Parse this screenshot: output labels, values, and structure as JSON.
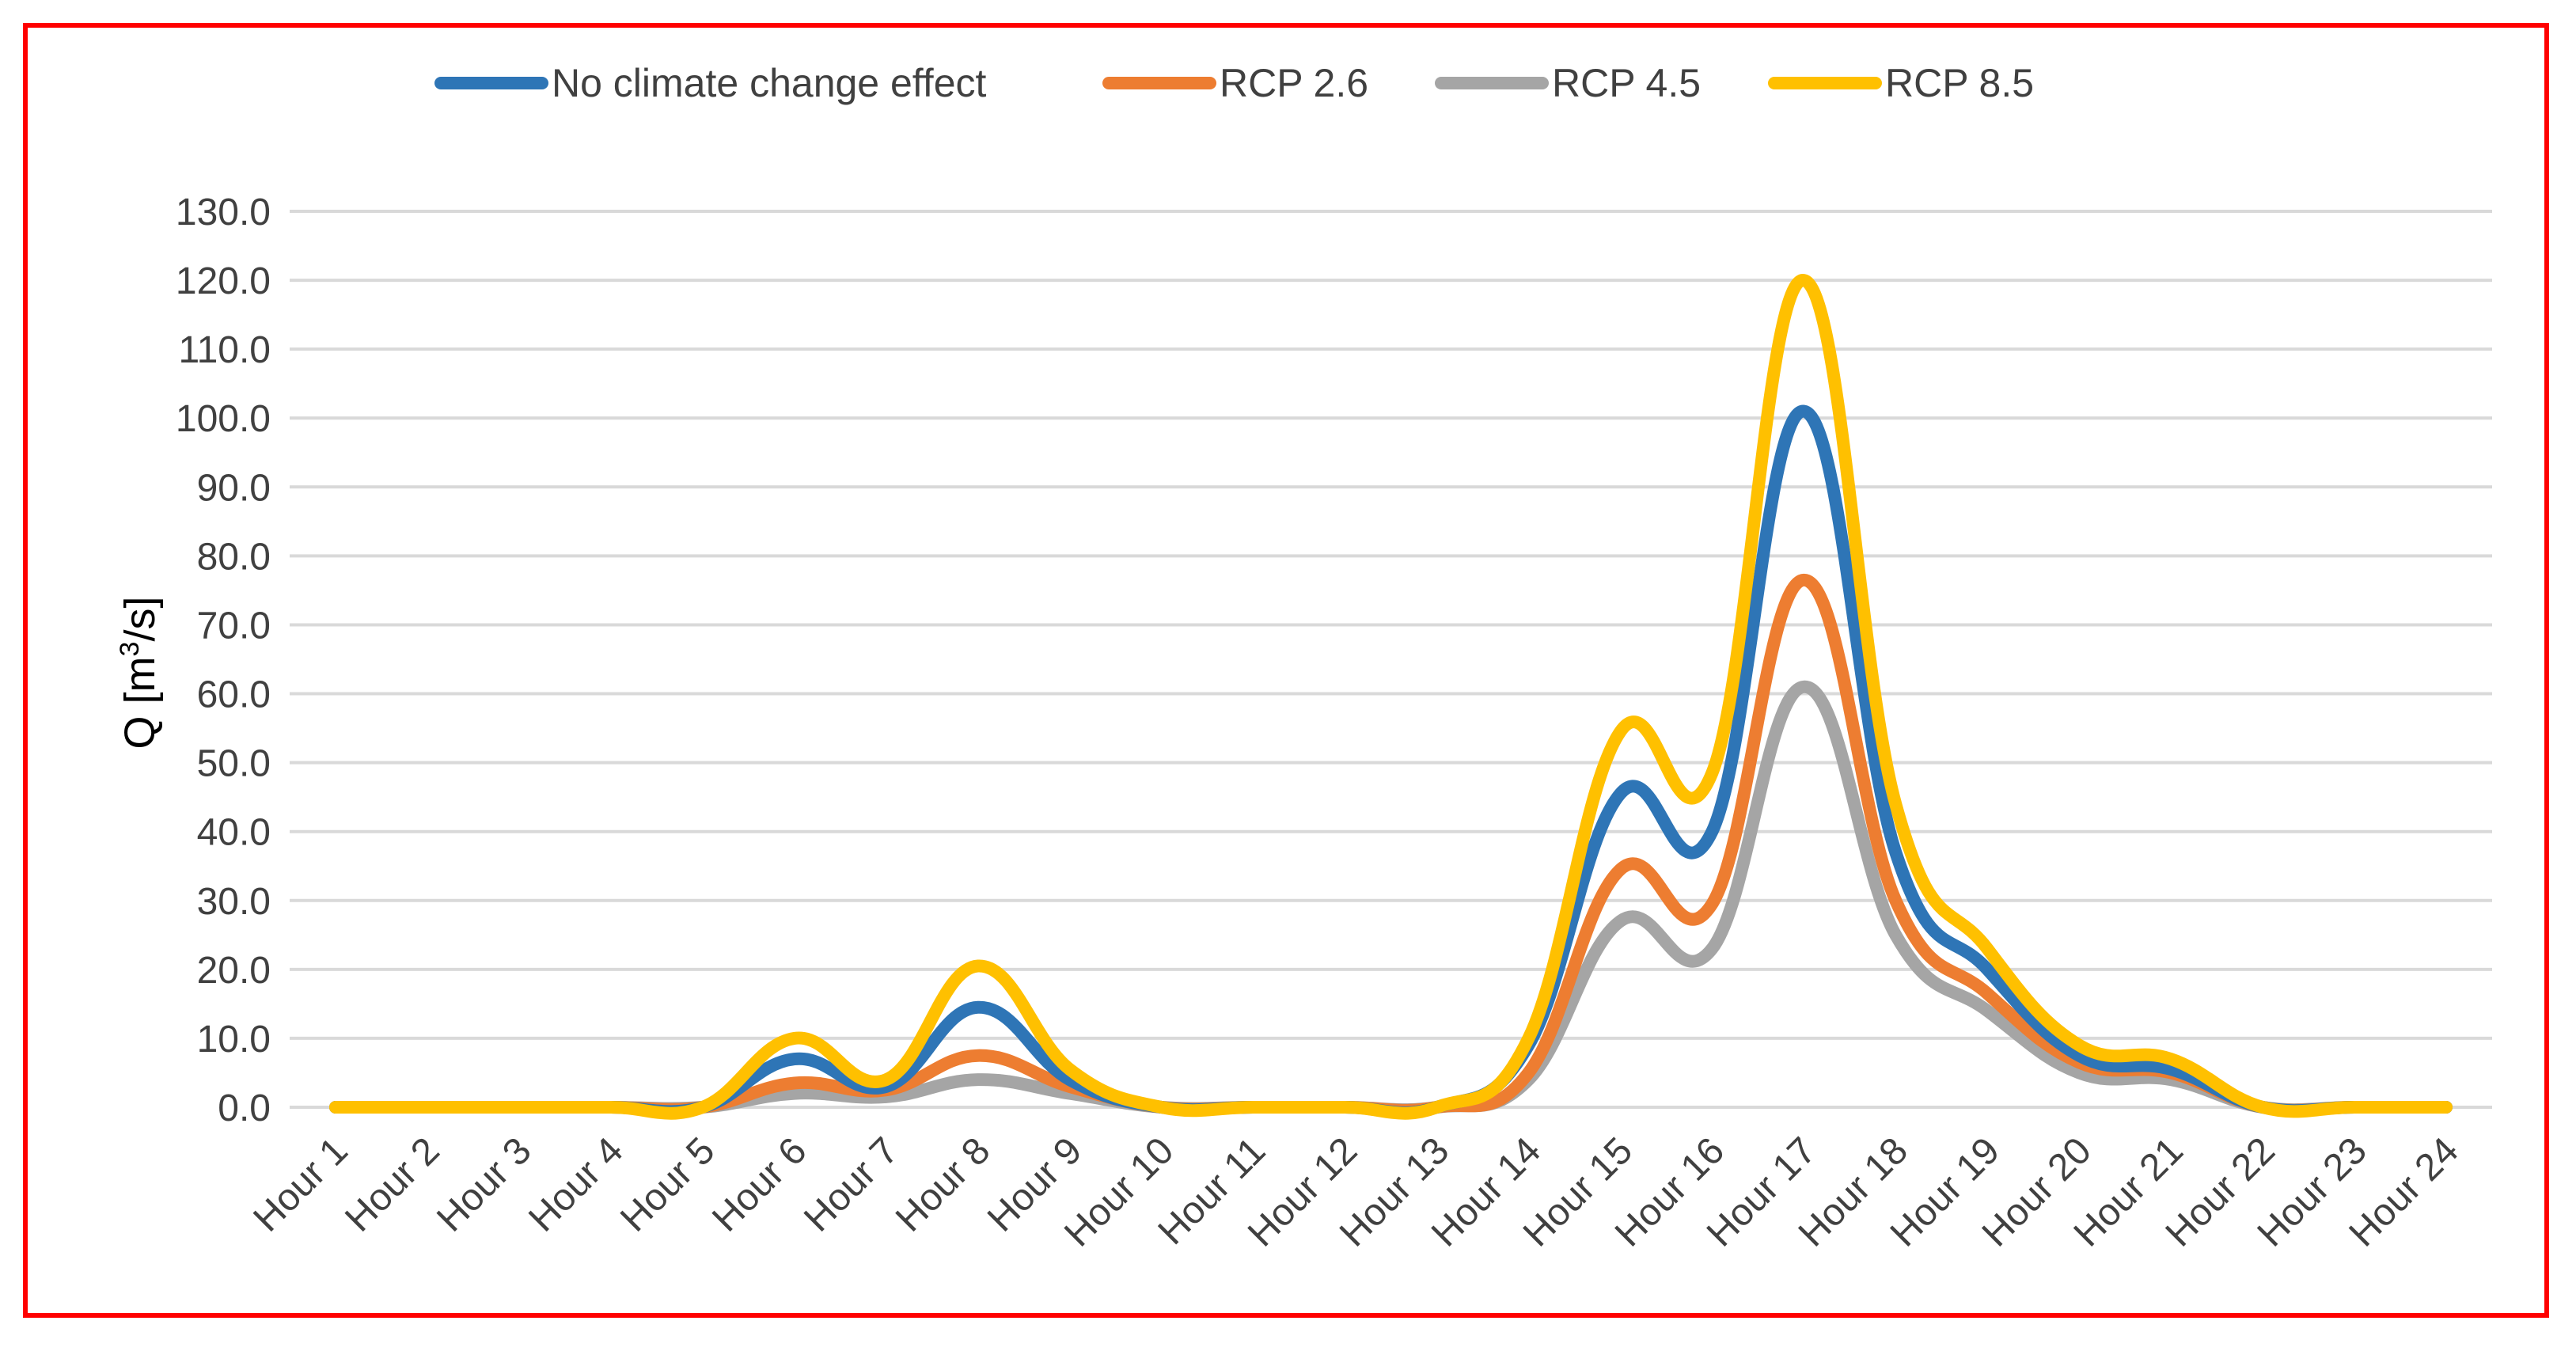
{
  "chart_data": {
    "type": "line",
    "smooth": true,
    "title": "",
    "xlabel": "",
    "ylabel": "Q [m",
    "ylabel_superscript": "3",
    "ylabel_suffix": "/s]",
    "ylim": [
      0,
      130
    ],
    "yticks": [
      "0.0",
      "10.0",
      "20.0",
      "30.0",
      "40.0",
      "50.0",
      "60.0",
      "70.0",
      "80.0",
      "90.0",
      "100.0",
      "110.0",
      "120.0",
      "130.0"
    ],
    "ytick_values": [
      0,
      10,
      20,
      30,
      40,
      50,
      60,
      70,
      80,
      90,
      100,
      110,
      120,
      130
    ],
    "grid": true,
    "legend_position": "top",
    "categories": [
      "Hour 1",
      "Hour 2",
      "Hour 3",
      "Hour 4",
      "Hour 5",
      "Hour 6",
      "Hour 7",
      "Hour 8",
      "Hour 9",
      "Hour 10",
      "Hour 11",
      "Hour 12",
      "Hour 13",
      "Hour 14",
      "Hour 15",
      "Hour 16",
      "Hour 17",
      "Hour 18",
      "Hour 19",
      "Hour 20",
      "Hour 21",
      "Hour 22",
      "Hour 23",
      "Hour 24"
    ],
    "series": [
      {
        "name": "No climate change effect",
        "color": "#2e75b6",
        "values": [
          0,
          0,
          0,
          0,
          0,
          7,
          3,
          14.5,
          4,
          0,
          0,
          0,
          0,
          9,
          45.5,
          40,
          101,
          37,
          20,
          7.5,
          5.5,
          0,
          0,
          0
        ]
      },
      {
        "name": "RCP 2.6",
        "color": "#ed7d31",
        "values": [
          0,
          0,
          0,
          0,
          0,
          3.5,
          2.5,
          7.5,
          3,
          0,
          0,
          0,
          0,
          5,
          34.5,
          29.5,
          76.5,
          30,
          16.5,
          6.5,
          5,
          0,
          0,
          0
        ]
      },
      {
        "name": "RCP 4.5",
        "color": "#a5a5a5",
        "values": [
          0,
          0,
          0,
          0,
          0,
          2,
          1.5,
          4,
          2,
          0,
          0,
          0,
          0,
          4,
          27,
          23,
          61,
          25,
          14,
          5,
          4,
          0,
          0,
          0
        ]
      },
      {
        "name": "RCP 8.5",
        "color": "#ffc000",
        "values": [
          0,
          0,
          0,
          0,
          0,
          10,
          4,
          20.5,
          5.5,
          0,
          0,
          0,
          0,
          10,
          54.5,
          48.5,
          120,
          44,
          23,
          9,
          7,
          0,
          0,
          0
        ]
      }
    ]
  }
}
